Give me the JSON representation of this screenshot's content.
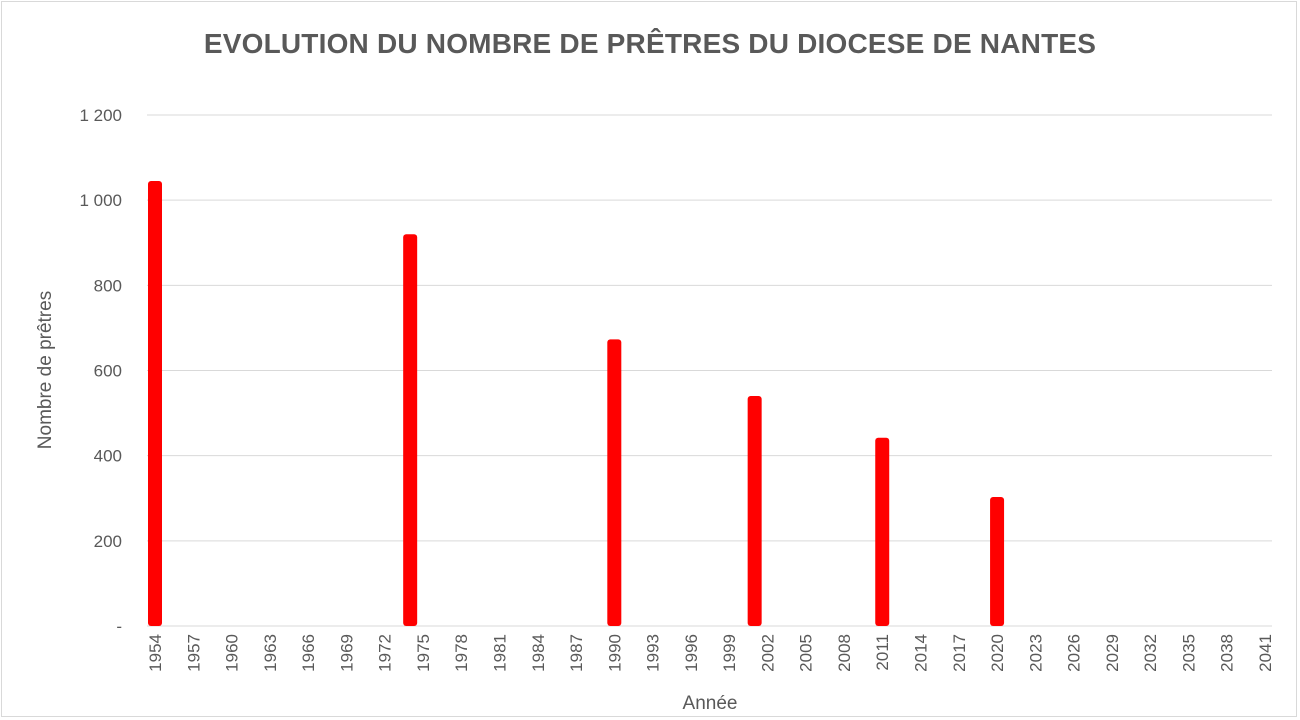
{
  "chart_data": {
    "type": "bar",
    "title": "EVOLUTION DU NOMBRE DE PRÊTRES DU DIOCESE DE NANTES",
    "xlabel": "Année",
    "ylabel": "Nombre de prêtres",
    "ylim": [
      0,
      1200
    ],
    "yticks": [
      0,
      200,
      400,
      600,
      800,
      1000,
      1200
    ],
    "ytick_labels": [
      "-",
      "200",
      "400",
      "600",
      "800",
      "1 000",
      "1 200"
    ],
    "x_range": [
      1954,
      2041
    ],
    "xtick_labels": [
      "1954",
      "1957",
      "1960",
      "1963",
      "1966",
      "1969",
      "1972",
      "1975",
      "1978",
      "1981",
      "1984",
      "1987",
      "1990",
      "1993",
      "1996",
      "1999",
      "2002",
      "2005",
      "2008",
      "2011",
      "2014",
      "2017",
      "2020",
      "2023",
      "2026",
      "2029",
      "2032",
      "2035",
      "2038",
      "2041"
    ],
    "grid": true,
    "color": "#ff0000",
    "series": [
      {
        "points": [
          {
            "x": 1954,
            "y": 1045
          },
          {
            "x": 1974,
            "y": 920
          },
          {
            "x": 1990,
            "y": 673
          },
          {
            "x": 2001,
            "y": 540
          },
          {
            "x": 2011,
            "y": 442
          },
          {
            "x": 2020,
            "y": 303
          }
        ]
      }
    ]
  }
}
